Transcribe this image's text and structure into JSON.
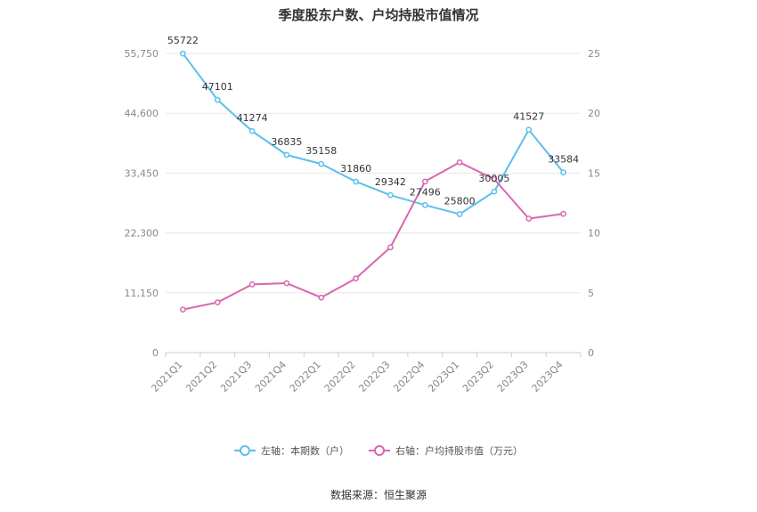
{
  "chart_data": {
    "type": "line",
    "title": "季度股东户数、户均持股市值情况",
    "categories": [
      "2021Q1",
      "2021Q2",
      "2021Q3",
      "2021Q4",
      "2022Q1",
      "2022Q2",
      "2022Q3",
      "2022Q4",
      "2023Q1",
      "2023Q2",
      "2023Q3",
      "2023Q4"
    ],
    "left_axis": {
      "ticks": [
        "0",
        "11,150",
        "22,300",
        "33,450",
        "44,600",
        "55,750"
      ],
      "ylim": [
        0,
        55750
      ]
    },
    "right_axis": {
      "ticks": [
        "0",
        "5",
        "10",
        "15",
        "20",
        "25"
      ],
      "ylim": [
        0,
        25
      ]
    },
    "series": [
      {
        "name": "左轴：本期数（户）",
        "axis": "left",
        "color": "#5bc0eb",
        "values": [
          55722,
          47101,
          41274,
          36835,
          35158,
          31860,
          29342,
          27496,
          25800,
          30005,
          41527,
          33584
        ],
        "labels": [
          "55722",
          "47101",
          "41274",
          "36835",
          "35158",
          "31860",
          "29342",
          "27496",
          "25800",
          "30005",
          "41527",
          "33584"
        ]
      },
      {
        "name": "右轴：户均持股市值（万元）",
        "axis": "right",
        "color": "#d966b0",
        "values": [
          3.6,
          4.2,
          5.7,
          5.8,
          4.6,
          6.2,
          8.8,
          14.3,
          15.9,
          14.5,
          11.2,
          11.6
        ]
      }
    ],
    "grid": true,
    "legend_position": "bottom"
  },
  "source": "数据来源：恒生聚源"
}
